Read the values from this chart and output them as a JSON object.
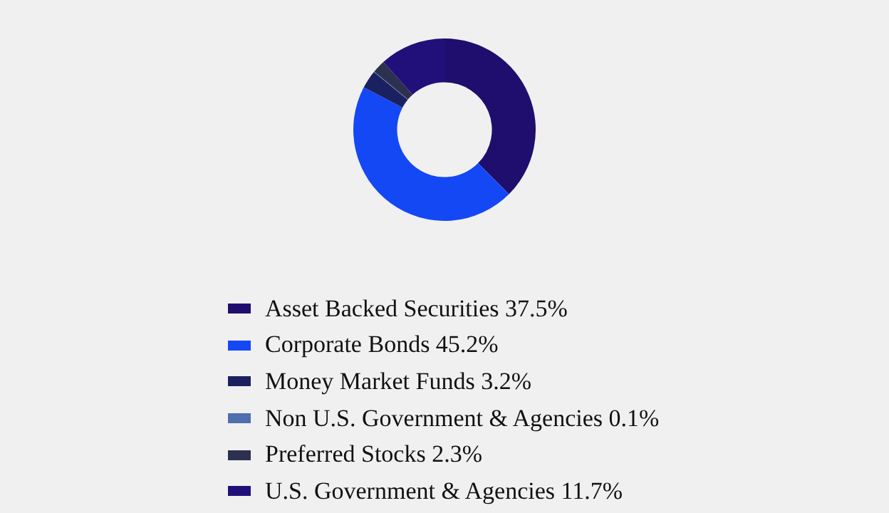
{
  "chart_data": {
    "type": "donut",
    "categories": [
      "Asset Backed Securities",
      "Corporate Bonds",
      "Money Market Funds",
      "Non U.S. Government & Agencies",
      "Preferred Stocks",
      "U.S. Government & Agencies"
    ],
    "values": [
      37.5,
      45.2,
      3.2,
      0.1,
      2.3,
      11.7
    ],
    "value_labels": [
      "37.5%",
      "45.2%",
      "3.2%",
      "0.1%",
      "2.3%",
      "11.7%"
    ],
    "colors": [
      "#1f0e6e",
      "#1448f5",
      "#1b2160",
      "#4f6fae",
      "#2c3150",
      "#22107a"
    ],
    "legend": "bottom"
  }
}
